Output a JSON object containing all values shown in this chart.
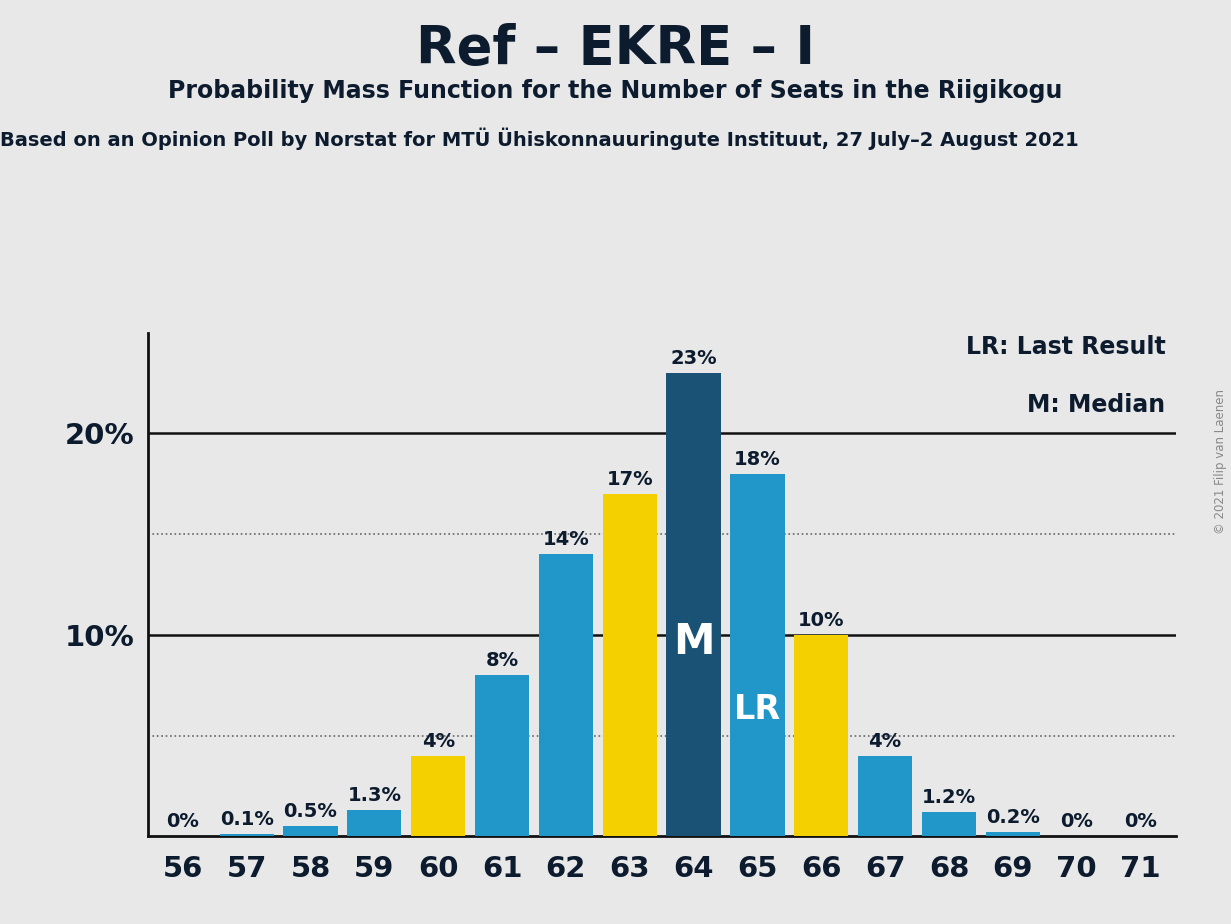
{
  "seats": [
    56,
    57,
    58,
    59,
    60,
    61,
    62,
    63,
    64,
    65,
    66,
    67,
    68,
    69,
    70,
    71
  ],
  "values": [
    0.0,
    0.1,
    0.5,
    1.3,
    4.0,
    8.0,
    14.0,
    17.0,
    23.0,
    18.0,
    10.0,
    4.0,
    1.2,
    0.2,
    0.0,
    0.0
  ],
  "bar_colors": [
    "#2196C8",
    "#2196C8",
    "#2196C8",
    "#2196C8",
    "#F5D000",
    "#2196C8",
    "#2196C8",
    "#F5D000",
    "#1A5276",
    "#2196C8",
    "#F5D000",
    "#2196C8",
    "#2196C8",
    "#2196C8",
    "#2196C8",
    "#F5D000"
  ],
  "value_labels": [
    "0%",
    "0.1%",
    "0.5%",
    "1.3%",
    "4%",
    "8%",
    "14%",
    "17%",
    "23%",
    "18%",
    "10%",
    "4%",
    "1.2%",
    "0.2%",
    "0%",
    "0%"
  ],
  "median_seat": 64,
  "lr_seat": 65,
  "title": "Ref – EKRE – I",
  "subtitle": "Probability Mass Function for the Number of Seats in the Riigikogu",
  "source": "Based on an Opinion Poll by Norstat for MTÜ Ühiskonnauuringute Instituut, 27 July–2 August 2021",
  "copyright": "© 2021 Filip van Laenen",
  "legend_lr": "LR: Last Result",
  "legend_m": "M: Median",
  "ylim_max": 25,
  "dotted_lines": [
    5,
    15
  ],
  "solid_lines": [
    10,
    20
  ],
  "background_color": "#E8E8E8",
  "title_fontsize": 38,
  "subtitle_fontsize": 17,
  "source_fontsize": 14,
  "bar_label_fontsize": 14,
  "tick_fontsize": 21,
  "legend_fontsize": 17,
  "text_color": "#0d1b2e",
  "source_color": "#0d1b2e",
  "copyright_color": "#888888",
  "m_label_fontsize": 30,
  "lr_label_fontsize": 24
}
